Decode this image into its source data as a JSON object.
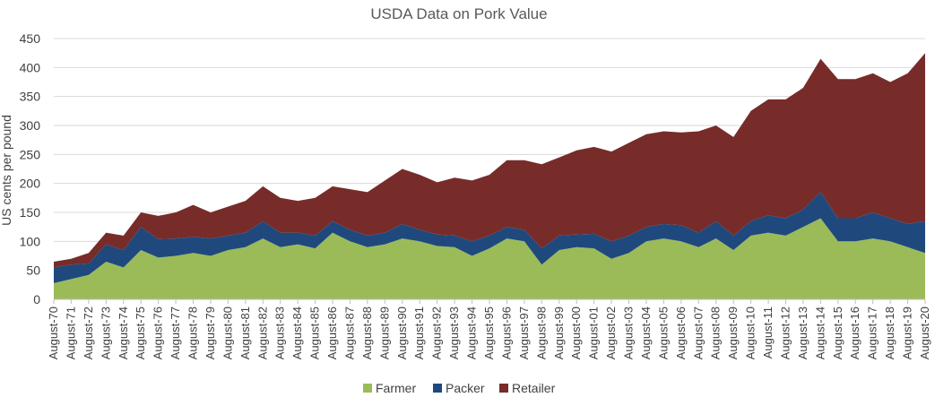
{
  "chart_data": {
    "type": "area",
    "stacked": true,
    "title": "USDA Data on Pork Value",
    "xlabel": "",
    "ylabel": "US cents per pound",
    "ylim": [
      0,
      450
    ],
    "yticks": [
      0,
      50,
      100,
      150,
      200,
      250,
      300,
      350,
      400,
      450
    ],
    "grid": true,
    "legend_position": "bottom",
    "categories": [
      "August-70",
      "August-71",
      "August-72",
      "August-73",
      "August-74",
      "August-75",
      "August-76",
      "August-77",
      "August-78",
      "August-79",
      "August-80",
      "August-81",
      "August-82",
      "August-83",
      "August-84",
      "August-85",
      "August-86",
      "August-87",
      "August-88",
      "August-89",
      "August-90",
      "August-91",
      "August-92",
      "August-93",
      "August-94",
      "August-95",
      "August-96",
      "August-97",
      "August-98",
      "August-99",
      "August-00",
      "August-01",
      "August-02",
      "August-03",
      "August-04",
      "August-05",
      "August-06",
      "August-07",
      "August-08",
      "August-09",
      "August-10",
      "August-11",
      "August-12",
      "August-13",
      "August-14",
      "August-15",
      "August-16",
      "August-17",
      "August-18",
      "August-19",
      "August-20"
    ],
    "series": [
      {
        "name": "Farmer",
        "color": "#9bbb59",
        "values": [
          28,
          35,
          42,
          65,
          55,
          85,
          72,
          75,
          80,
          75,
          85,
          90,
          105,
          90,
          95,
          88,
          115,
          100,
          90,
          95,
          105,
          100,
          92,
          90,
          75,
          88,
          105,
          100,
          60,
          85,
          90,
          88,
          70,
          80,
          100,
          105,
          100,
          90,
          105,
          85,
          110,
          115,
          110,
          125,
          140,
          100,
          100,
          105,
          100,
          90,
          80
        ]
      },
      {
        "name": "Packer",
        "color": "#1f497d",
        "values": [
          27,
          25,
          20,
          30,
          30,
          40,
          32,
          30,
          28,
          30,
          25,
          25,
          30,
          25,
          20,
          22,
          20,
          20,
          20,
          20,
          25,
          20,
          20,
          20,
          25,
          22,
          20,
          20,
          28,
          25,
          22,
          25,
          30,
          30,
          25,
          25,
          28,
          25,
          30,
          25,
          25,
          30,
          30,
          30,
          45,
          40,
          40,
          45,
          40,
          40,
          55
        ]
      },
      {
        "name": "Retailer",
        "color": "#772c2a",
        "values": [
          10,
          10,
          18,
          20,
          25,
          25,
          40,
          45,
          55,
          45,
          50,
          55,
          60,
          60,
          55,
          65,
          60,
          70,
          75,
          90,
          95,
          95,
          90,
          100,
          105,
          105,
          115,
          120,
          145,
          135,
          145,
          150,
          155,
          160,
          160,
          160,
          160,
          175,
          165,
          170,
          190,
          200,
          205,
          210,
          230,
          240,
          240,
          240,
          235,
          260,
          290
        ]
      }
    ]
  }
}
